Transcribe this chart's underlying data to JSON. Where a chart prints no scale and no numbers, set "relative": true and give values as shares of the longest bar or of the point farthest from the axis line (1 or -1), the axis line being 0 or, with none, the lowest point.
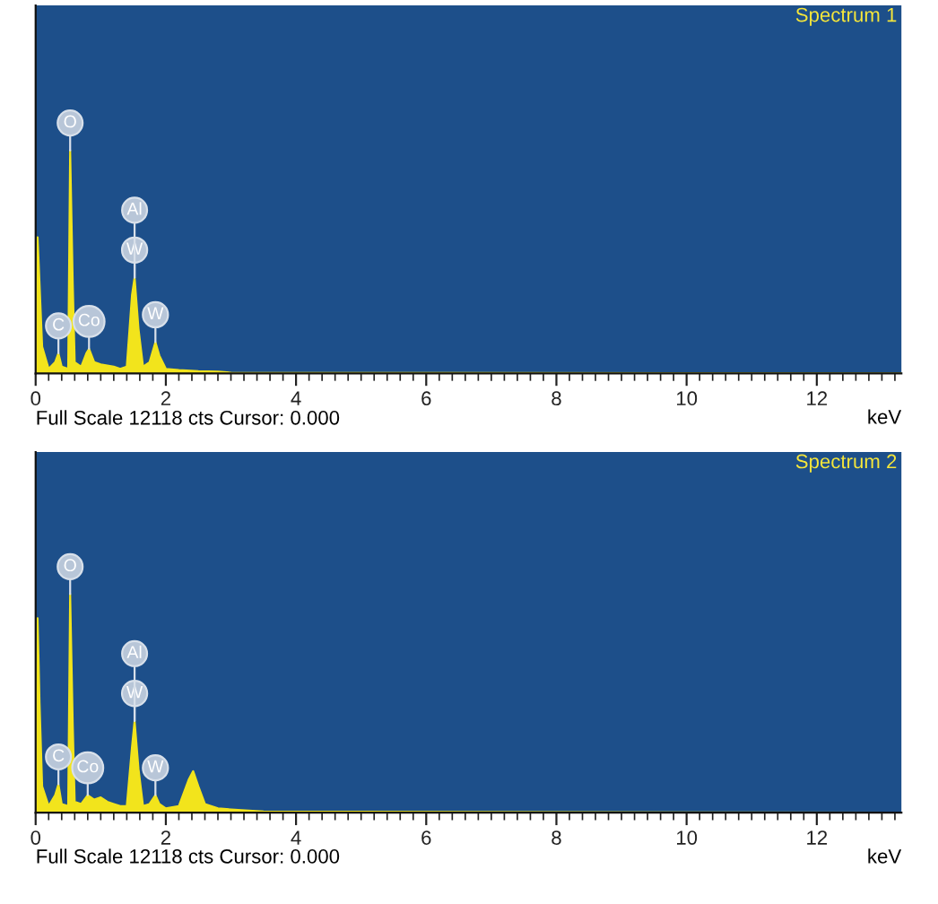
{
  "chart_data": [
    {
      "type": "area",
      "title": "Spectrum 1",
      "xlabel": "keV",
      "relative": true,
      "color": "#f2e41c",
      "xlim": [
        0,
        13.3
      ],
      "xticks": [
        0,
        2,
        4,
        6,
        8,
        10,
        12
      ],
      "grid": false,
      "x": [
        0,
        0.03,
        0.06,
        0.1,
        0.2,
        0.3,
        0.35,
        0.4,
        0.5,
        0.53,
        0.57,
        0.6,
        0.7,
        0.78,
        0.82,
        0.9,
        1.0,
        1.1,
        1.2,
        1.3,
        1.4,
        1.48,
        1.52,
        1.58,
        1.65,
        1.75,
        1.84,
        1.9,
        2.0,
        2.2,
        2.5,
        2.8,
        3.0,
        13.3
      ],
      "values": [
        0,
        0.61,
        0.4,
        0.12,
        0.02,
        0.05,
        0.09,
        0.03,
        0.02,
        1.0,
        0.4,
        0.05,
        0.03,
        0.09,
        0.11,
        0.05,
        0.04,
        0.035,
        0.03,
        0.02,
        0.03,
        0.35,
        0.43,
        0.2,
        0.03,
        0.05,
        0.14,
        0.08,
        0.02,
        0.015,
        0.01,
        0.008,
        0.003,
        0
      ],
      "annotations": [
        {
          "text": "O",
          "x": 0.53,
          "y": 1.0
        },
        {
          "text": "W",
          "x": 1.52,
          "y": 0.43
        },
        {
          "text": "Al",
          "x": 1.52,
          "y": 0.43
        },
        {
          "text": "C",
          "x": 0.35,
          "y": 0.09
        },
        {
          "text": "Co",
          "x": 0.82,
          "y": 0.11
        },
        {
          "text": "W",
          "x": 1.84,
          "y": 0.14
        },
        "Full Scale 12118 cts Cursor: 0.000"
      ]
    },
    {
      "type": "area",
      "title": "Spectrum 2",
      "xlabel": "keV",
      "relative": true,
      "color": "#f2e41c",
      "xlim": [
        0,
        13.3
      ],
      "xticks": [
        0,
        2,
        4,
        6,
        8,
        10,
        12
      ],
      "grid": false,
      "x": [
        0,
        0.03,
        0.06,
        0.1,
        0.2,
        0.3,
        0.35,
        0.4,
        0.5,
        0.53,
        0.57,
        0.6,
        0.7,
        0.8,
        0.9,
        1.0,
        1.1,
        1.2,
        1.3,
        1.4,
        1.48,
        1.52,
        1.58,
        1.65,
        1.75,
        1.84,
        1.9,
        2.0,
        2.2,
        2.35,
        2.42,
        2.5,
        2.6,
        2.8,
        3.0,
        3.5,
        13.3
      ],
      "values": [
        0,
        0.89,
        0.5,
        0.12,
        0.03,
        0.08,
        0.13,
        0.04,
        0.03,
        1.0,
        0.4,
        0.05,
        0.04,
        0.08,
        0.06,
        0.07,
        0.05,
        0.04,
        0.03,
        0.03,
        0.3,
        0.42,
        0.2,
        0.03,
        0.04,
        0.08,
        0.04,
        0.02,
        0.03,
        0.15,
        0.19,
        0.12,
        0.04,
        0.02,
        0.015,
        0.005,
        0
      ],
      "annotations": [
        {
          "text": "O",
          "x": 0.53,
          "y": 1.0
        },
        {
          "text": "W",
          "x": 1.52,
          "y": 0.42
        },
        {
          "text": "Al",
          "x": 1.52,
          "y": 0.42
        },
        {
          "text": "C",
          "x": 0.35,
          "y": 0.13
        },
        {
          "text": "Co",
          "x": 0.8,
          "y": 0.08
        },
        {
          "text": "W",
          "x": 1.84,
          "y": 0.08
        },
        "Full Scale 12118 cts Cursor: 0.000"
      ]
    }
  ]
}
